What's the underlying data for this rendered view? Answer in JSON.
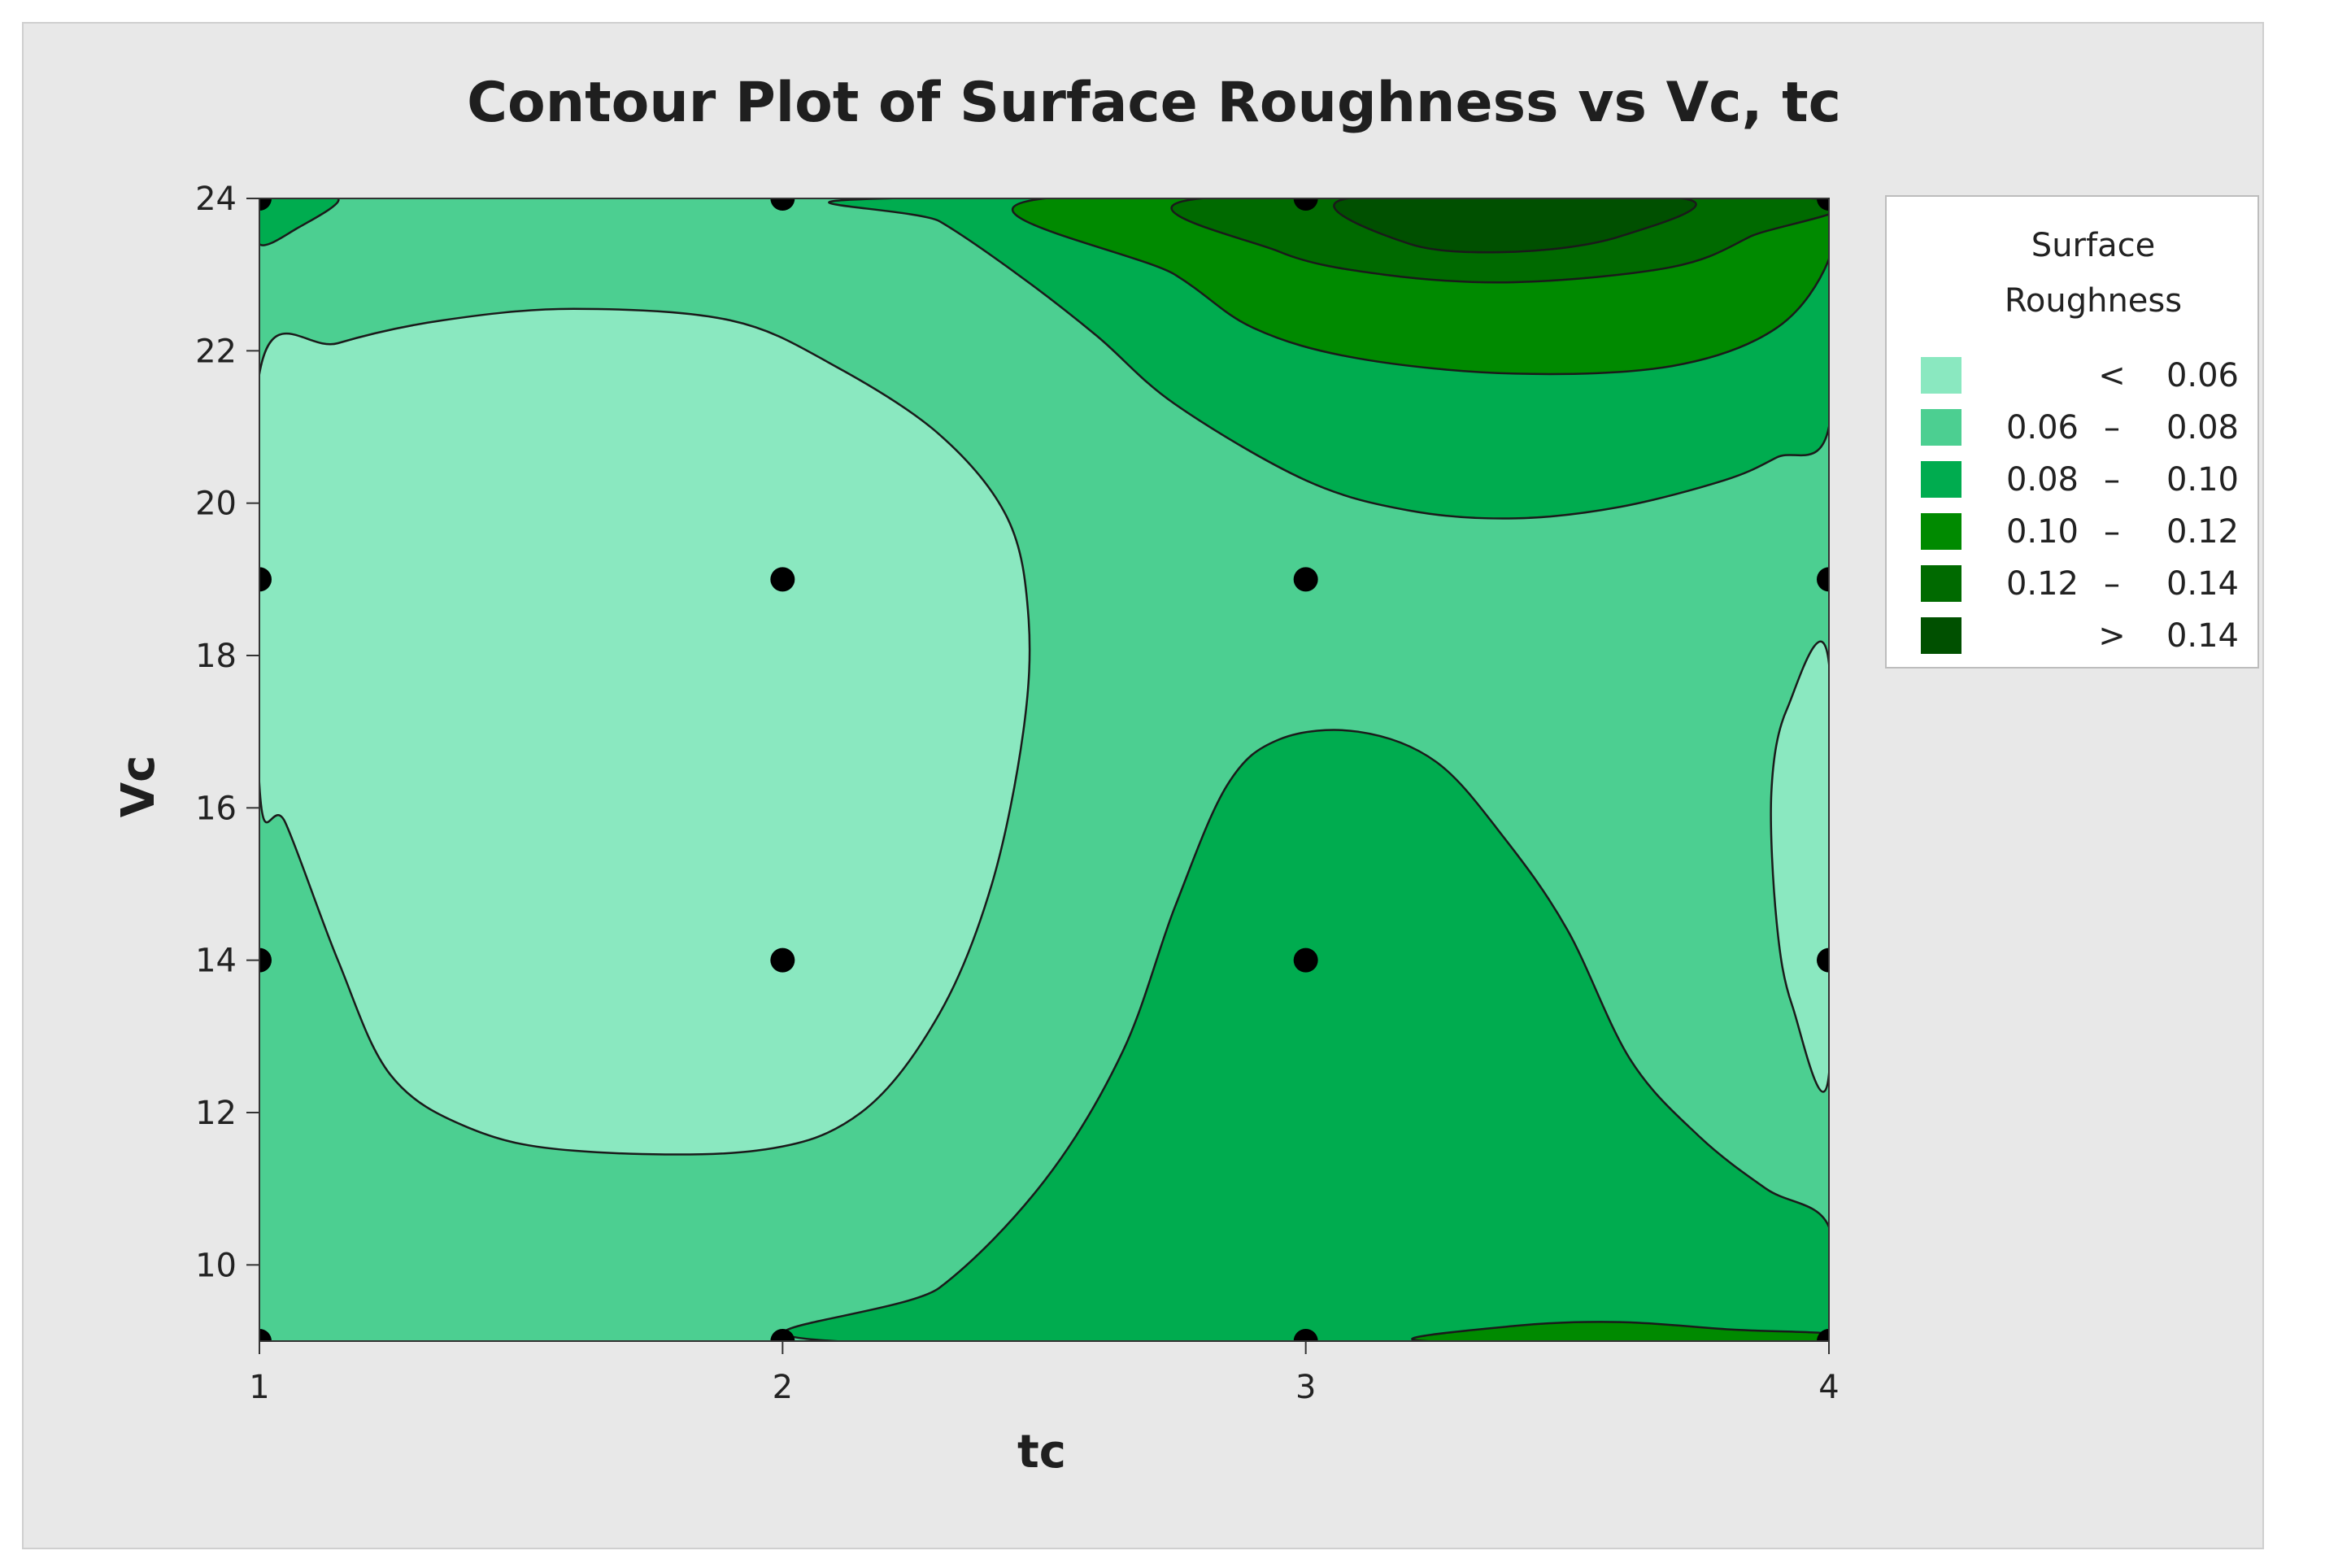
{
  "chart_data": {
    "type": "contour",
    "title": "Contour Plot of Surface Roughness vs Vc, tc",
    "xlabel": "tc",
    "ylabel": "Vc",
    "xlim": [
      1,
      4
    ],
    "ylim": [
      9,
      24
    ],
    "x_ticks": [
      1,
      2,
      3,
      4
    ],
    "y_ticks": [
      10,
      12,
      14,
      16,
      18,
      20,
      22,
      24
    ],
    "legend": {
      "title_lines": [
        "Surface",
        "Roughness"
      ],
      "placement": "right",
      "entries": [
        {
          "low": "",
          "sep": "<",
          "high": "0.06",
          "color": "#8ae8c0"
        },
        {
          "low": "0.06",
          "sep": "–",
          "high": "0.08",
          "color": "#4ccf91"
        },
        {
          "low": "0.08",
          "sep": "–",
          "high": "0.10",
          "color": "#00ac4f"
        },
        {
          "low": "0.10",
          "sep": "–",
          "high": "0.12",
          "color": "#008a00"
        },
        {
          "low": "0.12",
          "sep": "–",
          "high": "0.14",
          "color": "#006a00"
        },
        {
          "low": "",
          "sep": ">",
          "high": "0.14",
          "color": "#005000"
        }
      ]
    },
    "design_points": [
      {
        "tc": 1,
        "Vc": 9
      },
      {
        "tc": 1,
        "Vc": 14
      },
      {
        "tc": 1,
        "Vc": 19
      },
      {
        "tc": 1,
        "Vc": 24
      },
      {
        "tc": 2,
        "Vc": 9
      },
      {
        "tc": 2,
        "Vc": 14
      },
      {
        "tc": 2,
        "Vc": 19
      },
      {
        "tc": 2,
        "Vc": 24
      },
      {
        "tc": 3,
        "Vc": 9
      },
      {
        "tc": 3,
        "Vc": 14
      },
      {
        "tc": 3,
        "Vc": 19
      },
      {
        "tc": 3,
        "Vc": 24
      },
      {
        "tc": 4,
        "Vc": 9
      },
      {
        "tc": 4,
        "Vc": 14
      },
      {
        "tc": 4,
        "Vc": 19
      },
      {
        "tc": 4,
        "Vc": 24
      }
    ],
    "regions": [
      {
        "name": "band-0.06-0.08-background",
        "level": 1,
        "fill": "#4ccf91",
        "points": [
          [
            1,
            9
          ],
          [
            4,
            9
          ],
          [
            4,
            24
          ],
          [
            1,
            24
          ]
        ]
      },
      {
        "name": "band-below-0.06-left",
        "level": 0,
        "fill": "#8ae8c0",
        "points": [
          [
            1,
            21.7
          ],
          [
            1.15,
            22.1
          ],
          [
            1.35,
            22.4
          ],
          [
            1.6,
            22.55
          ],
          [
            1.9,
            22.4
          ],
          [
            2.1,
            21.8
          ],
          [
            2.3,
            20.9
          ],
          [
            2.43,
            19.8
          ],
          [
            2.47,
            18.5
          ],
          [
            2.46,
            17
          ],
          [
            2.4,
            15
          ],
          [
            2.3,
            13.3
          ],
          [
            2.15,
            12
          ],
          [
            1.95,
            11.5
          ],
          [
            1.6,
            11.5
          ],
          [
            1.4,
            11.8
          ],
          [
            1.25,
            12.5
          ],
          [
            1.15,
            14
          ],
          [
            1.05,
            15.8
          ],
          [
            1,
            16.3
          ]
        ]
      },
      {
        "name": "band-below-0.06-right",
        "level": 0,
        "fill": "#8ae8c0",
        "points": [
          [
            4,
            17.9
          ],
          [
            3.92,
            17.3
          ],
          [
            3.89,
            16.2
          ],
          [
            3.9,
            14.5
          ],
          [
            3.93,
            13.4
          ],
          [
            4,
            12.5
          ]
        ]
      },
      {
        "name": "band-0.08-0.10-bottom",
        "level": 2,
        "fill": "#00ac4f",
        "points": [
          [
            2.1,
            9
          ],
          [
            2.3,
            9.7
          ],
          [
            2.5,
            11.1
          ],
          [
            2.65,
            12.8
          ],
          [
            2.75,
            14.7
          ],
          [
            2.85,
            16.3
          ],
          [
            2.95,
            16.9
          ],
          [
            3.1,
            17
          ],
          [
            3.25,
            16.6
          ],
          [
            3.38,
            15.6
          ],
          [
            3.5,
            14.4
          ],
          [
            3.62,
            12.7
          ],
          [
            3.75,
            11.7
          ],
          [
            3.88,
            11
          ],
          [
            4,
            10.5
          ],
          [
            4,
            9
          ]
        ]
      },
      {
        "name": "band-0.10-0.12-bottom",
        "level": 3,
        "fill": "#008a00",
        "points": [
          [
            3.23,
            9
          ],
          [
            3.4,
            9.2
          ],
          [
            3.6,
            9.25
          ],
          [
            3.82,
            9.15
          ],
          [
            4,
            9.1
          ],
          [
            4,
            9
          ]
        ]
      },
      {
        "name": "band-0.08-0.10-top",
        "level": 2,
        "fill": "#00ac4f",
        "points": [
          [
            2.2,
            24
          ],
          [
            2.3,
            23.7
          ],
          [
            2.45,
            23
          ],
          [
            2.6,
            22.2
          ],
          [
            2.75,
            21.3
          ],
          [
            3,
            20.3
          ],
          [
            3.2,
            19.9
          ],
          [
            3.4,
            19.8
          ],
          [
            3.6,
            19.95
          ],
          [
            3.8,
            20.3
          ],
          [
            3.9,
            20.6
          ],
          [
            4,
            21
          ],
          [
            4,
            24
          ]
        ]
      },
      {
        "name": "band-0.10-0.12-top",
        "level": 3,
        "fill": "#008a00",
        "points": [
          [
            2.5,
            24
          ],
          [
            2.75,
            23
          ],
          [
            2.9,
            22.3
          ],
          [
            3.1,
            21.9
          ],
          [
            3.4,
            21.7
          ],
          [
            3.7,
            21.8
          ],
          [
            3.9,
            22.3
          ],
          [
            4,
            23.2
          ],
          [
            4,
            24
          ]
        ]
      },
      {
        "name": "band-0.12-0.14-top",
        "level": 4,
        "fill": "#006a00",
        "points": [
          [
            2.8,
            24
          ],
          [
            2.95,
            23.3
          ],
          [
            3.15,
            23
          ],
          [
            3.4,
            22.9
          ],
          [
            3.7,
            23.1
          ],
          [
            3.85,
            23.5
          ],
          [
            3.97,
            24
          ]
        ]
      },
      {
        "name": "band-above-0.14-top",
        "level": 5,
        "fill": "#005000",
        "points": [
          [
            3.08,
            24
          ],
          [
            3.2,
            23.4
          ],
          [
            3.4,
            23.3
          ],
          [
            3.6,
            23.5
          ],
          [
            3.72,
            24
          ]
        ]
      },
      {
        "name": "band-0.08-0.10-top-left-corner",
        "level": 2,
        "fill": "#00ac4f",
        "points": [
          [
            1,
            24
          ],
          [
            1,
            23.4
          ],
          [
            1.07,
            23.6
          ],
          [
            1.15,
            24
          ]
        ]
      }
    ]
  }
}
